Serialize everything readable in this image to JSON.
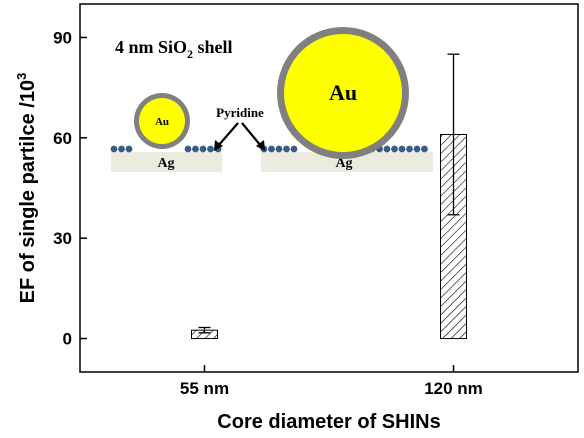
{
  "chart_data": {
    "type": "bar",
    "categories": [
      "55 nm",
      "120 nm"
    ],
    "values": [
      2.5,
      61
    ],
    "errors": [
      0.8,
      24
    ],
    "ylabel": "EF of single partilce /10",
    "ylabel_superscript": "3",
    "xlabel": "Core diameter of SHINs",
    "ylim": [
      -10,
      100
    ],
    "yticks": [
      "0",
      "30",
      "60",
      "90"
    ],
    "grid": false,
    "bar_pattern": "diagonal hatch",
    "colors": {
      "bar_hatch": "#000000",
      "au_core": "#ffff00",
      "sio2_shell": "#808080",
      "ag_substrate": "#ebebdf",
      "pyridine": "#3a5a8a"
    }
  },
  "inset": {
    "shell_label": "4 nm SiO",
    "shell_sub": "2",
    "shell_suffix": " shell",
    "pyridine_label": "Pyridine",
    "small_core_label": "Au",
    "large_core_label": "Au",
    "substrate_left_label": "Ag",
    "substrate_right_label": "Ag"
  }
}
